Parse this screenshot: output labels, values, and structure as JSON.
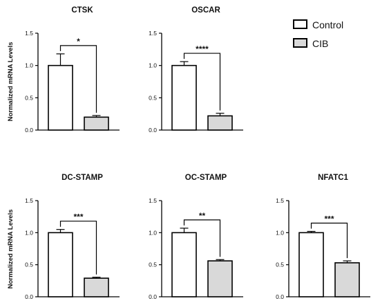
{
  "figure": {
    "legend": [
      {
        "label": "Control",
        "fill": "#ffffff"
      },
      {
        "label": "CIB",
        "fill": "#d9d9d9"
      }
    ],
    "ylabel": "Normalized mRNA Levels"
  },
  "chart_data": [
    {
      "type": "bar",
      "title": "CTSK",
      "categories": [
        "Control",
        "CIB"
      ],
      "values": [
        1.0,
        0.2
      ],
      "errors": [
        0.18,
        0.025
      ],
      "significance": "*",
      "ylim": [
        0,
        1.5
      ],
      "yticks": [
        "0.0",
        "0.5",
        "1.0",
        "1.5"
      ],
      "ylabel": "Normalized mRNA Levels",
      "grid": false
    },
    {
      "type": "bar",
      "title": "OSCAR",
      "categories": [
        "Control",
        "CIB"
      ],
      "values": [
        1.0,
        0.22
      ],
      "errors": [
        0.06,
        0.04
      ],
      "significance": "****",
      "ylim": [
        0,
        1.5
      ],
      "yticks": [
        "0.0",
        "0.5",
        "1.0",
        "1.5"
      ],
      "ylabel": "",
      "grid": false
    },
    {
      "type": "bar",
      "title": "DC-STAMP",
      "categories": [
        "Control",
        "CIB"
      ],
      "values": [
        1.0,
        0.29
      ],
      "errors": [
        0.05,
        0.015
      ],
      "significance": "***",
      "ylim": [
        0,
        1.5
      ],
      "yticks": [
        "0.0",
        "0.5",
        "1.0",
        "1.5"
      ],
      "ylabel": "Normalized mRNA Levels",
      "grid": false
    },
    {
      "type": "bar",
      "title": "OC-STAMP",
      "categories": [
        "Control",
        "CIB"
      ],
      "values": [
        1.0,
        0.56
      ],
      "errors": [
        0.07,
        0.02
      ],
      "significance": "**",
      "ylim": [
        0,
        1.5
      ],
      "yticks": [
        "0.0",
        "0.5",
        "1.0",
        "1.5"
      ],
      "ylabel": "",
      "grid": false
    },
    {
      "type": "bar",
      "title": "NFATC1",
      "categories": [
        "Control",
        "CIB"
      ],
      "values": [
        1.0,
        0.53
      ],
      "errors": [
        0.02,
        0.03
      ],
      "significance": "***",
      "ylim": [
        0,
        1.5
      ],
      "yticks": [
        "0.0",
        "0.5",
        "1.0",
        "1.5"
      ],
      "ylabel": "",
      "grid": false
    }
  ]
}
